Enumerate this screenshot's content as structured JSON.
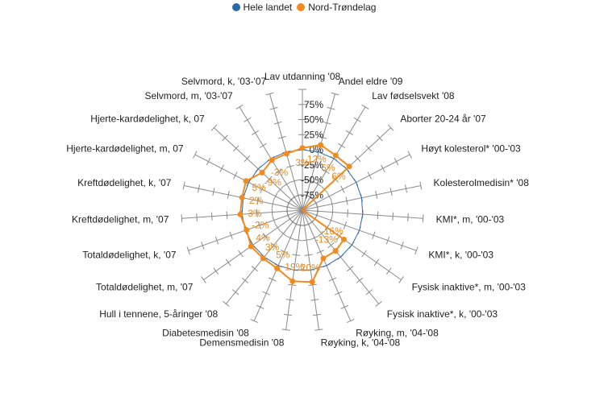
{
  "chart_data": {
    "type": "radar",
    "categories": [
      "Lav utdanning '08",
      "Andel eldre '09",
      "Lav fødselsvekt '08",
      "Aborter 20-24 år '07",
      "Høyt kolesterol* '00-'03",
      "Kolesterolmedisin* '08",
      "KMI*, m, '00-'03",
      "KMI*, k, '00-'03",
      "Fysisk inaktive*, m, '00-'03",
      "Fysisk inaktive*, k, '00-'03",
      "Røyking, m, '04-'08",
      "Røyking, k, '04-'08",
      "Demensmedisin '08",
      "Diabetesmedisin '08",
      "Hull i tennene, 5-åringer '08",
      "Totaldødelighet, m, '07",
      "Totaldødelighet, k, '07",
      "Kreftdødelighet, m, '07",
      "Kreftdødelighet, k, '07",
      "Hjerte-kardødelighet, m, 07",
      "Hjerte-kardødelighet, k, 07",
      "Selvmord, m, '03-'07",
      "Selvmord, k, '03-'07"
    ],
    "series": [
      {
        "name": "Hele landet",
        "color": "#2a6aa6",
        "values": [
          0,
          0,
          0,
          0,
          0,
          0,
          0,
          0,
          0,
          0,
          0,
          0,
          0,
          0,
          0,
          0,
          0,
          0,
          0,
          0,
          0,
          0,
          0
        ]
      },
      {
        "name": "Nord-Trøndelag",
        "color": "#f28a1e",
        "values": [
          3,
          12,
          6,
          6,
          -100,
          -100,
          -100,
          -100,
          -16,
          -13,
          -13,
          20,
          19,
          5,
          3,
          4,
          -2,
          3,
          2,
          5,
          -9,
          -3,
          -3
        ]
      }
    ],
    "data_labels": [
      "3%",
      "12%",
      "6%",
      "6%",
      "",
      "",
      "",
      "",
      "-16%",
      "-13%",
      "",
      "20%",
      "19%",
      "5%",
      "3%",
      "4%",
      "-2%",
      "3%",
      "2%",
      "5%",
      "-9%",
      "-3%",
      ""
    ],
    "radial_ticks": [
      "75%",
      "50%",
      "25%",
      "0%",
      "-25%",
      "-50%",
      "-75%"
    ],
    "tick_values": [
      75,
      50,
      25,
      0,
      -25,
      -50,
      -75
    ],
    "rlim": [
      -100,
      100
    ],
    "grid": true,
    "legend_position": "top"
  }
}
